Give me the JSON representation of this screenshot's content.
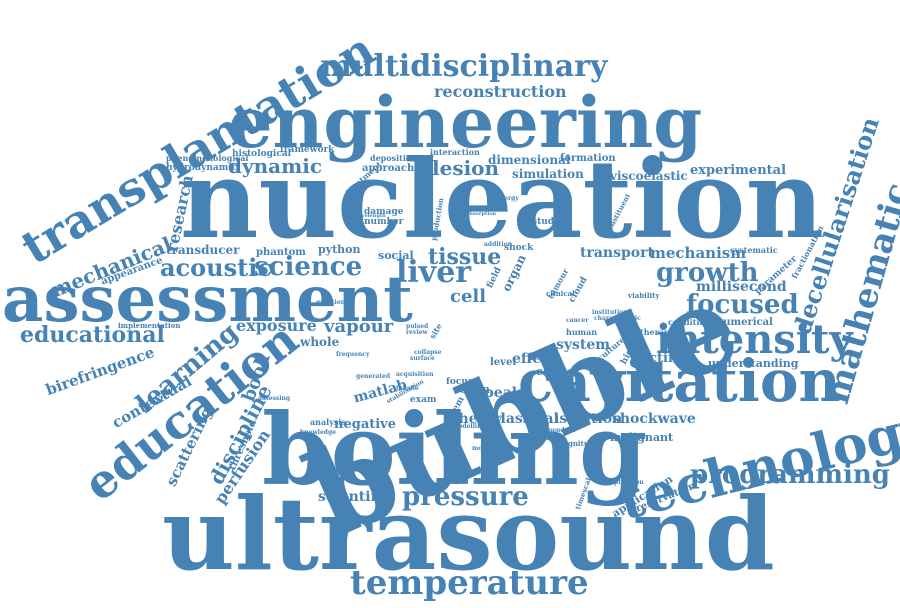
{
  "cloud": {
    "color": "#4682b4",
    "words": [
      "nucleation",
      "bubble",
      "boiling",
      "ultrasound",
      "engineering",
      "assessment",
      "cavitation",
      "technology",
      "transplantation",
      "education",
      "temperature",
      "intensity",
      "mathematic",
      "multidisciplinary",
      "liver",
      "science",
      "acoustic",
      "growth",
      "focused",
      "pressure",
      "programming",
      "decellularisation",
      "learning",
      "educational",
      "mechanical",
      "dynamic",
      "lesion",
      "tissue",
      "discipline",
      "reconstruction",
      "perfusion",
      "birefringence",
      "contextual",
      "scattering",
      "research",
      "vapour",
      "exposure",
      "book",
      "cell",
      "mechanism",
      "transport",
      "millisecond",
      "classical",
      "isolation",
      "shockwave",
      "theory",
      "negative",
      "matlab",
      "effect",
      "system",
      "peak",
      "rectified",
      "scientific",
      "understanding",
      "preservation",
      "application",
      "malignant",
      "viscoelastic",
      "experimental",
      "dimensional",
      "simulation",
      "transducer",
      "threshold",
      "phantom",
      "python",
      "social",
      "whole",
      "numerical",
      "open",
      "closed",
      "focus",
      "exam",
      "parameter",
      "appearance",
      "hydrodynamic",
      "histological",
      "framework",
      "phenomenological",
      "interaction",
      "deposition",
      "formation",
      "approach",
      "damage",
      "number",
      "treatment",
      "studies",
      "shock",
      "organ",
      "field",
      "fractionation",
      "implementation",
      "systematic",
      "condition",
      "therapy",
      "higher",
      "culture",
      "level",
      "problem",
      "site",
      "tumour",
      "cloud",
      "clinical",
      "human",
      "timescale",
      "magnitude",
      "complication",
      "dependent",
      "modelling",
      "knowledge",
      "analysis",
      "assessing",
      "generated",
      "question",
      "stabilisation",
      "characteristic",
      "institution",
      "viability",
      "production",
      "addition",
      "constituent",
      "morphology",
      "review",
      "acquisition",
      "frequency",
      "collapse",
      "cancer",
      "surface",
      "pulsed",
      "tensile",
      "wavelength",
      "absorption",
      "energy"
    ]
  }
}
